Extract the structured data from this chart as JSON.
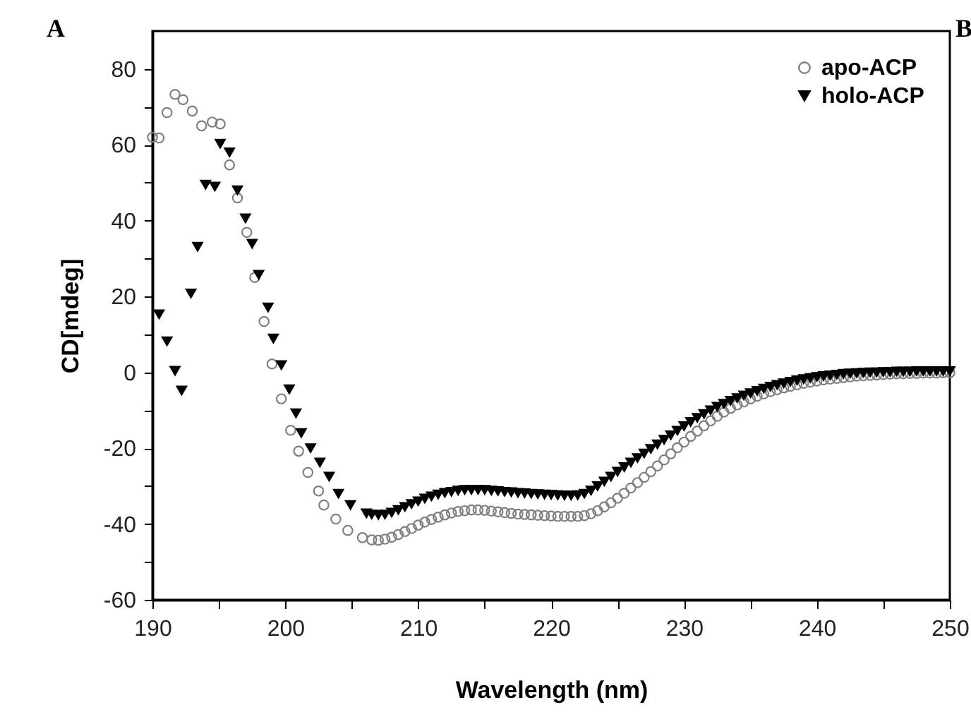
{
  "chart_data": {
    "type": "scatter",
    "xlabel": "Wavelength (nm)",
    "ylabel": "CD[mdeg]",
    "annotations": [
      "A",
      "B"
    ],
    "xlim": [
      190,
      250
    ],
    "ylim": [
      -60,
      90
    ],
    "xticks": [
      190,
      {
        "value": 195,
        "label": null
      },
      200,
      {
        "value": 205,
        "label": null
      },
      210,
      {
        "value": 215,
        "label": null
      },
      220,
      {
        "value": 225,
        "label": null
      },
      230,
      {
        "value": 235,
        "label": null
      },
      240,
      {
        "value": 245,
        "label": null
      },
      250
    ],
    "yticks": [
      -60,
      {
        "value": -50,
        "label": null
      },
      -40,
      {
        "value": -30,
        "label": null
      },
      -20,
      {
        "value": -10,
        "label": null
      },
      0,
      {
        "value": 10,
        "label": null
      },
      20,
      {
        "value": 30,
        "label": null
      },
      40,
      {
        "value": 50,
        "label": null
      },
      60,
      {
        "value": 70,
        "label": null
      },
      80
    ],
    "grid": false,
    "legend": "top right",
    "series": [
      {
        "name": "apo-ACP",
        "color": "#808080",
        "marker": "circle",
        "x": [
          190.0,
          190.5,
          191.1,
          191.7,
          192.3,
          193.0,
          193.7,
          194.5,
          195.1,
          195.8,
          196.4,
          197.1,
          197.7,
          198.4,
          199.0,
          199.7,
          200.4,
          201.0,
          201.7,
          202.5,
          202.9,
          203.8,
          204.7,
          205.8,
          206.5,
          207,
          207.5,
          208,
          208.5,
          209,
          209.5,
          210,
          210.5,
          211,
          211.5,
          212,
          212.5,
          213,
          213.5,
          214,
          214.5,
          215,
          215.5,
          216,
          216.5,
          217,
          217.5,
          218,
          218.5,
          219,
          219.5,
          220,
          220.5,
          221,
          221.5,
          222,
          222.5,
          223,
          223.5,
          224,
          224.5,
          225,
          225.5,
          226,
          226.5,
          227,
          227.5,
          228,
          228.5,
          229,
          229.5,
          230,
          230.5,
          231,
          231.5,
          232,
          232.5,
          233,
          233.5,
          234,
          234.5,
          235,
          235.5,
          236,
          236.5,
          237,
          237.5,
          238,
          238.5,
          239,
          239.5,
          240,
          240.5,
          241,
          241.5,
          242,
          242.5,
          243,
          243.5,
          244,
          244.5,
          245,
          245.5,
          246,
          246.5,
          247,
          247.5,
          248,
          248.5,
          249,
          249.5,
          250
        ],
        "values": [
          62,
          61.8,
          68.5,
          73.3,
          71.9,
          68.9,
          65,
          66,
          65.5,
          54.7,
          46,
          36.9,
          25,
          13.4,
          2.2,
          -7,
          -15.3,
          -20.8,
          -26.4,
          -31.3,
          -35,
          -38.7,
          -41.7,
          -43.6,
          -44.2,
          -44.3,
          -44,
          -43.5,
          -42.8,
          -42,
          -41.2,
          -40.3,
          -39.5,
          -38.8,
          -38.2,
          -37.6,
          -37.1,
          -36.7,
          -36.5,
          -36.3,
          -36.3,
          -36.4,
          -36.6,
          -36.8,
          -37,
          -37.2,
          -37.4,
          -37.5,
          -37.6,
          -37.7,
          -37.8,
          -37.9,
          -38,
          -38,
          -38,
          -38,
          -37.8,
          -37.3,
          -36.5,
          -35.5,
          -34.4,
          -33.2,
          -31.9,
          -30.5,
          -29.1,
          -27.7,
          -26.2,
          -24.7,
          -23.1,
          -21.5,
          -19.9,
          -18.4,
          -16.9,
          -15.5,
          -14.1,
          -12.8,
          -11.6,
          -10.5,
          -9.5,
          -8.6,
          -7.8,
          -7,
          -6.3,
          -5.7,
          -5.1,
          -4.6,
          -4.1,
          -3.7,
          -3.3,
          -2.9,
          -2.6,
          -2.3,
          -2,
          -1.8,
          -1.6,
          -1.4,
          -1.2,
          -1,
          -0.9,
          -0.8,
          -0.7,
          -0.6,
          -0.5,
          -0.4,
          -0.4,
          -0.3,
          -0.3,
          -0.2,
          -0.2,
          -0.2,
          -0.1,
          -0.1
        ]
      },
      {
        "name": "holo-ACP",
        "color": "#000000",
        "marker": "triangle",
        "x": [
          190.5,
          191.1,
          191.7,
          192.2,
          192.9,
          193.4,
          194.0,
          194.7,
          195.1,
          195.8,
          196.4,
          197.0,
          197.5,
          198.0,
          198.7,
          199.1,
          199.7,
          200.3,
          200.8,
          201.2,
          201.9,
          202.6,
          203.3,
          204.0,
          204.9,
          206.1,
          206.5,
          207,
          207.5,
          208,
          208.5,
          209,
          209.5,
          210,
          210.5,
          211,
          211.5,
          212,
          212.5,
          213,
          213.5,
          214,
          214.5,
          215,
          215.5,
          216,
          216.5,
          217,
          217.5,
          218,
          218.5,
          219,
          219.5,
          220,
          220.5,
          221,
          221.5,
          222,
          222.5,
          223,
          223.5,
          224,
          224.5,
          225,
          225.5,
          226,
          226.5,
          227,
          227.5,
          228,
          228.5,
          229,
          229.5,
          230,
          230.5,
          231,
          231.5,
          232,
          232.5,
          233,
          233.5,
          234,
          234.5,
          235,
          235.5,
          236,
          236.5,
          237,
          237.5,
          238,
          238.5,
          239,
          239.5,
          240,
          240.5,
          241,
          241.5,
          242,
          242.5,
          243,
          243.5,
          244,
          244.5,
          245,
          245.5,
          246,
          246.5,
          247,
          247.5,
          248,
          248.5,
          249,
          249.5,
          250
        ],
        "values": [
          15.3,
          8.2,
          0.4,
          -4.8,
          20.8,
          33.1,
          49.5,
          49,
          60.3,
          58,
          48,
          40.6,
          33.9,
          25.7,
          17.1,
          8.9,
          1.9,
          -4.5,
          -10.8,
          -16,
          -20,
          -23.8,
          -27.5,
          -32,
          -35,
          -37.2,
          -37.5,
          -37.6,
          -37.5,
          -37,
          -36.3,
          -35.5,
          -34.7,
          -34,
          -33.3,
          -32.7,
          -32.2,
          -31.8,
          -31.5,
          -31.2,
          -31,
          -31,
          -31,
          -31,
          -31.2,
          -31.3,
          -31.5,
          -31.6,
          -31.8,
          -31.9,
          -32,
          -32.1,
          -32.2,
          -32.3,
          -32.4,
          -32.5,
          -32.5,
          -32.4,
          -32,
          -31.2,
          -30,
          -28.8,
          -27.5,
          -26.2,
          -25,
          -23.8,
          -22.6,
          -21.4,
          -20.2,
          -19,
          -17.8,
          -16.6,
          -15.4,
          -14.2,
          -13.1,
          -12,
          -11,
          -10,
          -9.1,
          -8.3,
          -7.5,
          -6.8,
          -6.1,
          -5.5,
          -4.9,
          -4.3,
          -3.8,
          -3.3,
          -2.9,
          -2.5,
          -2.1,
          -1.8,
          -1.5,
          -1.2,
          -1,
          -0.8,
          -0.6,
          -0.4,
          -0.3,
          -0.2,
          -0.1,
          0,
          0,
          0.1,
          0.1,
          0.2,
          0.2,
          0.2,
          0.3,
          0.3,
          0.3,
          0.3,
          0.3,
          0.3
        ]
      }
    ]
  }
}
